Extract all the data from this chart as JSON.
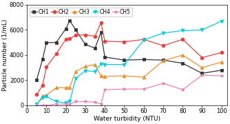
{
  "x": [
    5,
    8,
    10,
    15,
    20,
    22,
    25,
    30,
    35,
    38,
    40,
    50,
    60,
    70,
    80,
    90,
    100
  ],
  "CH1": [
    2050,
    3650,
    5000,
    5000,
    6100,
    6750,
    6000,
    4850,
    4550,
    5800,
    3850,
    3600,
    3650,
    3600,
    3350,
    2550,
    2800
  ],
  "CH2": [
    850,
    1600,
    3050,
    4100,
    5250,
    5300,
    5600,
    5600,
    5500,
    6600,
    5100,
    5050,
    5250,
    4750,
    5250,
    3800,
    4200
  ],
  "CH3": [
    50,
    750,
    800,
    1400,
    1400,
    1450,
    2700,
    3100,
    3250,
    2350,
    2300,
    2350,
    2250,
    3550,
    4000,
    3000,
    3450
  ],
  "CH4": [
    100,
    600,
    700,
    300,
    200,
    300,
    2150,
    2750,
    2700,
    3300,
    3250,
    3250,
    5200,
    5750,
    5950,
    6000,
    6700
  ],
  "CH5": [
    0,
    0,
    0,
    100,
    100,
    100,
    300,
    300,
    250,
    100,
    1250,
    1300,
    1300,
    1750,
    1250,
    2400,
    2350
  ],
  "colors": {
    "CH1": "#333333",
    "CH2": "#e84040",
    "CH3": "#e89030",
    "CH4": "#00ccdd",
    "CH5": "#ee80b0"
  },
  "markers": {
    "CH1": "s",
    "CH2": "o",
    "CH3": "^",
    "CH4": "v",
    "CH5": "*"
  },
  "xlabel": "Water turbidity (NTU)",
  "ylabel": "Particle number (1/mL)",
  "ylim": [
    0,
    8000
  ],
  "xlim": [
    0,
    103
  ],
  "yticks": [
    0,
    2000,
    4000,
    6000,
    8000
  ],
  "xticks": [
    0,
    10,
    20,
    30,
    40,
    50,
    60,
    70,
    80,
    90,
    100
  ],
  "background_color": "#ffffff",
  "legend_fontsize": 5.5,
  "axis_fontsize": 6.5,
  "tick_fontsize": 6,
  "linewidth": 0.9,
  "markersize": 3.5
}
